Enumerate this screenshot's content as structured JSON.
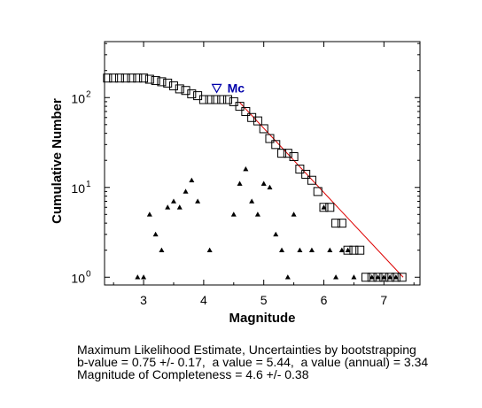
{
  "chart_data": {
    "type": "scatter",
    "xlabel": "Magnitude",
    "ylabel": "Cumulative Number",
    "xlim": [
      2.35,
      7.6
    ],
    "ylim": [
      0.82,
      420
    ],
    "yscale": "log",
    "xticks": [
      3,
      4,
      5,
      6,
      7
    ],
    "yticks": [
      {
        "value": 1,
        "base": "10",
        "exp": "0"
      },
      {
        "value": 10,
        "base": "10",
        "exp": "1"
      },
      {
        "value": 100,
        "base": "10",
        "exp": "2"
      }
    ],
    "grid": false,
    "cumulative": {
      "marker": "square",
      "x": [
        2.4,
        2.5,
        2.6,
        2.7,
        2.8,
        2.9,
        3.0,
        3.1,
        3.2,
        3.3,
        3.4,
        3.5,
        3.6,
        3.7,
        3.8,
        3.9,
        4.0,
        4.1,
        4.2,
        4.3,
        4.4,
        4.5,
        4.6,
        4.7,
        4.8,
        4.9,
        5.0,
        5.1,
        5.2,
        5.3,
        5.4,
        5.5,
        5.6,
        5.7,
        5.8,
        5.9,
        6.0,
        6.1,
        6.2,
        6.3,
        6.4,
        6.5,
        6.6,
        6.7,
        6.8,
        6.9,
        7.0,
        7.1,
        7.2,
        7.3
      ],
      "y": [
        165,
        165,
        165,
        165,
        165,
        165,
        165,
        160,
        155,
        150,
        145,
        135,
        125,
        120,
        110,
        105,
        95,
        95,
        95,
        95,
        95,
        90,
        80,
        70,
        60,
        55,
        45,
        35,
        30,
        24,
        24,
        22,
        16,
        14,
        12,
        9,
        6,
        6,
        4,
        4,
        2,
        2,
        2,
        1,
        1,
        1,
        1,
        1,
        1,
        1
      ]
    },
    "incremental": {
      "marker": "triangle",
      "x": [
        2.9,
        3.0,
        3.1,
        3.2,
        3.3,
        3.4,
        3.5,
        3.6,
        3.7,
        3.8,
        3.9,
        4.1,
        4.5,
        4.6,
        4.7,
        4.8,
        4.9,
        5.0,
        5.1,
        5.2,
        5.3,
        5.4,
        5.5,
        5.6,
        5.8,
        6.0,
        6.1,
        6.2,
        6.3,
        6.4,
        6.5,
        6.8,
        6.9,
        7.0,
        7.1,
        7.2
      ],
      "y": [
        1,
        1,
        5,
        3,
        2,
        6,
        7,
        6,
        9,
        12,
        7,
        2,
        5,
        11,
        16,
        7,
        5,
        11,
        10,
        3,
        2,
        1,
        5,
        2,
        2,
        6,
        2,
        1,
        2,
        2,
        1,
        1,
        1,
        1,
        1,
        1
      ]
    },
    "fit": {
      "x": [
        4.6,
        7.32
      ],
      "y": [
        88,
        1
      ],
      "color": "#dd0000"
    },
    "mc": {
      "label": "Mc",
      "x": 4.6,
      "y": 128,
      "color": "#0000aa"
    }
  },
  "notes": {
    "line1": "Maximum Likelihood Estimate, Uncertainties by bootstrapping",
    "line2": "b-value = 0.75 +/- 0.17,  a value = 5.44,  a value (annual) = 3.34",
    "line3": "Magnitude of Completeness = 4.6 +/- 0.38"
  }
}
